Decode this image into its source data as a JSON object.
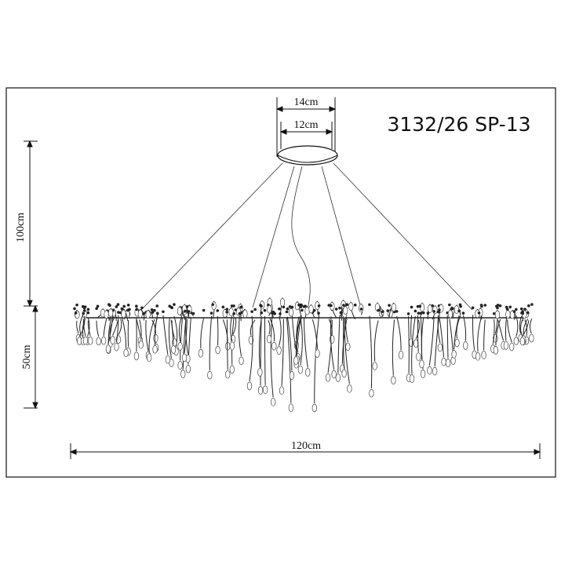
{
  "title": "3132/26 SP-13",
  "dimensions": {
    "canopy_outer": "14cm",
    "canopy_inner": "12cm",
    "drop_height": "100cm",
    "body_height": "50cm",
    "width": "120cm"
  }
}
